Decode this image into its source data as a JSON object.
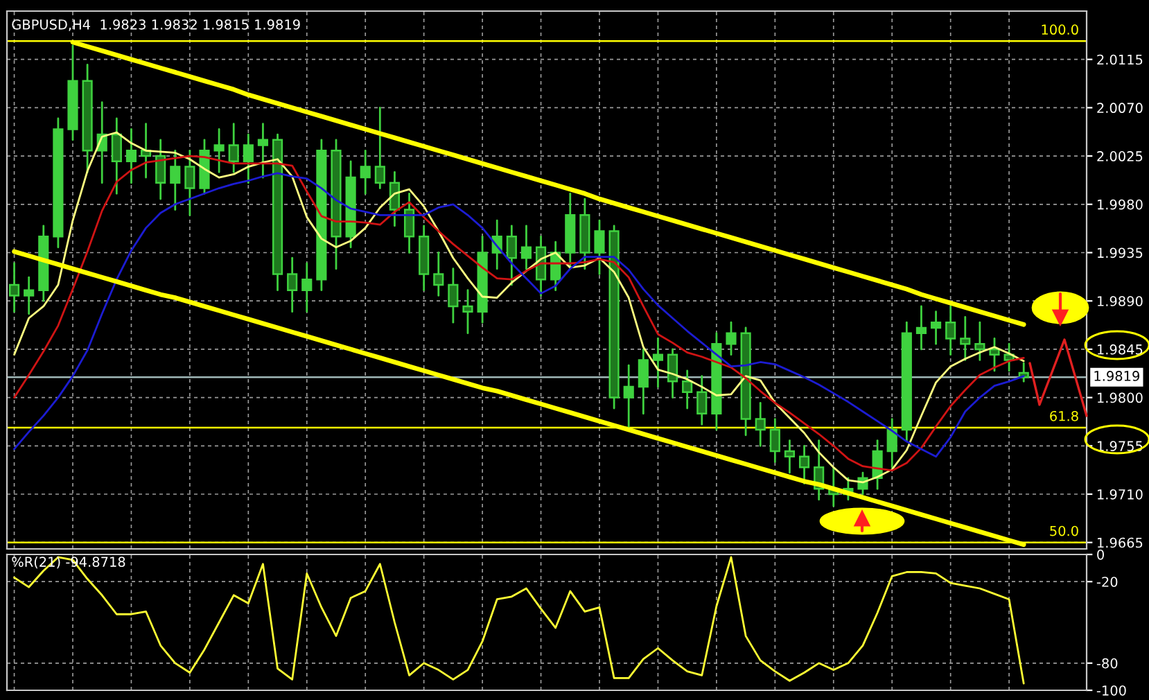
{
  "chart_data": [
    {
      "type": "candlestick",
      "title": "GBPUSD,H4  1.9823 1.9832 1.9815 1.9819",
      "color": "#3fd23f",
      "categories": [
        null,
        null,
        null,
        null,
        null,
        null,
        null,
        null,
        null,
        null,
        null,
        null,
        null,
        null,
        null,
        null,
        null,
        null,
        null,
        null,
        null,
        null,
        null,
        null,
        null,
        null,
        null,
        null,
        null,
        null,
        null,
        null,
        null,
        null,
        null,
        null,
        null,
        null,
        null,
        null,
        null,
        null,
        null,
        null,
        null,
        null,
        null,
        null,
        null,
        null,
        null,
        null,
        null,
        null,
        null,
        null,
        null,
        null,
        null,
        null,
        null,
        null,
        null,
        null,
        null,
        null,
        null,
        null,
        null,
        null
      ],
      "ohlc": [
        [
          1.9905,
          1.9925,
          1.988,
          1.9895
        ],
        [
          1.9895,
          1.9912,
          1.9878,
          1.99
        ],
        [
          1.99,
          1.996,
          1.989,
          1.995
        ],
        [
          1.995,
          2.006,
          1.994,
          2.005
        ],
        [
          2.005,
          2.0128,
          2.004,
          2.0095
        ],
        [
          2.0095,
          2.011,
          2.001,
          2.003
        ],
        [
          2.003,
          2.0075,
          2.0,
          2.0045
        ],
        [
          2.0045,
          2.006,
          1.999,
          2.002
        ],
        [
          2.002,
          2.005,
          2.0,
          2.003
        ],
        [
          2.003,
          2.0055,
          2.0005,
          2.0025
        ],
        [
          2.0025,
          2.004,
          1.9985,
          2.0
        ],
        [
          2.0,
          2.003,
          1.9975,
          2.0015
        ],
        [
          2.0015,
          2.003,
          1.997,
          1.9995
        ],
        [
          1.9995,
          2.004,
          1.999,
          2.003
        ],
        [
          2.003,
          2.005,
          2.001,
          2.0035
        ],
        [
          2.0035,
          2.0055,
          2.001,
          2.002
        ],
        [
          2.002,
          2.0045,
          2.0,
          2.0035
        ],
        [
          2.0035,
          2.0055,
          2.0005,
          2.004
        ],
        [
          2.004,
          2.0045,
          1.99,
          1.9915
        ],
        [
          1.9915,
          1.993,
          1.988,
          1.99
        ],
        [
          1.99,
          1.9925,
          1.988,
          1.991
        ],
        [
          1.991,
          2.004,
          1.99,
          2.003
        ],
        [
          2.003,
          2.004,
          1.992,
          1.995
        ],
        [
          1.995,
          2.002,
          1.994,
          2.0005
        ],
        [
          2.0005,
          2.003,
          1.999,
          2.0015
        ],
        [
          2.0015,
          2.007,
          1.9995,
          2.0
        ],
        [
          2.0,
          2.001,
          1.996,
          1.9975
        ],
        [
          1.9975,
          1.999,
          1.9935,
          1.995
        ],
        [
          1.995,
          1.996,
          1.99,
          1.9915
        ],
        [
          1.9915,
          1.9935,
          1.9895,
          1.9905
        ],
        [
          1.9905,
          1.992,
          1.987,
          1.9885
        ],
        [
          1.9885,
          1.99,
          1.986,
          1.988
        ],
        [
          1.988,
          1.995,
          1.987,
          1.9935
        ],
        [
          1.9935,
          1.9965,
          1.992,
          1.995
        ],
        [
          1.995,
          1.996,
          1.9905,
          1.993
        ],
        [
          1.993,
          1.996,
          1.992,
          1.994
        ],
        [
          1.994,
          1.995,
          1.9895,
          1.991
        ],
        [
          1.991,
          1.9945,
          1.99,
          1.9935
        ],
        [
          1.9935,
          1.999,
          1.992,
          1.997
        ],
        [
          1.997,
          1.9985,
          1.992,
          1.9935
        ],
        [
          1.9935,
          1.9965,
          1.9915,
          1.9955
        ],
        [
          1.9955,
          1.996,
          1.979,
          1.98
        ],
        [
          1.98,
          1.983,
          1.977,
          1.981
        ],
        [
          1.981,
          1.9845,
          1.9785,
          1.9835
        ],
        [
          1.9835,
          1.9855,
          1.981,
          1.984
        ],
        [
          1.984,
          1.9845,
          1.98,
          1.9815
        ],
        [
          1.9815,
          1.9825,
          1.979,
          1.9805
        ],
        [
          1.9805,
          1.982,
          1.9775,
          1.9785
        ],
        [
          1.9785,
          1.986,
          1.977,
          1.985
        ],
        [
          1.985,
          1.987,
          1.984,
          1.986
        ],
        [
          1.986,
          1.9865,
          1.9765,
          1.978
        ],
        [
          1.978,
          1.9795,
          1.9755,
          1.977
        ],
        [
          1.977,
          1.978,
          1.974,
          1.975
        ],
        [
          1.975,
          1.976,
          1.973,
          1.9745
        ],
        [
          1.9745,
          1.9755,
          1.972,
          1.9735
        ],
        [
          1.9735,
          1.976,
          1.9705,
          1.9715
        ],
        [
          1.9715,
          1.9735,
          1.9699,
          1.971
        ],
        [
          1.971,
          1.9725,
          1.9705,
          1.9715
        ],
        [
          1.9715,
          1.973,
          1.971,
          1.9725
        ],
        [
          1.9725,
          1.976,
          1.9715,
          1.975
        ],
        [
          1.975,
          1.978,
          1.9735,
          1.977
        ],
        [
          1.977,
          1.987,
          1.976,
          1.986
        ],
        [
          1.986,
          1.9885,
          1.9845,
          1.9865
        ],
        [
          1.9865,
          1.988,
          1.985,
          1.987
        ],
        [
          1.987,
          1.9885,
          1.984,
          1.9855
        ],
        [
          1.9855,
          1.9875,
          1.9835,
          1.985
        ],
        [
          1.985,
          1.987,
          1.9835,
          1.9845
        ],
        [
          1.9845,
          1.9855,
          1.9825,
          1.984
        ],
        [
          1.984,
          1.985,
          1.9825,
          1.9835
        ],
        [
          1.9823,
          1.9832,
          1.9815,
          1.9819
        ]
      ],
      "series": [
        {
          "type": "line",
          "color": "#ffff80",
          "values": [
            1.984,
            1.9874,
            1.9885,
            1.9905,
            1.9965,
            2.0011,
            2.0043,
            2.0047,
            2.0037,
            2.003,
            2.0029,
            2.0028,
            2.0022,
            2.0013,
            2.0005,
            2.0008,
            2.0015,
            2.0019,
            2.0022,
            2.0006,
            1.9968,
            1.9948,
            1.994,
            1.9946,
            1.9958,
            1.9977,
            1.999,
            1.9994,
            1.9978,
            1.9955,
            1.993,
            1.9911,
            1.9894,
            1.9893,
            1.9907,
            1.9918,
            1.9929,
            1.9935,
            1.9921,
            1.9923,
            1.993,
            1.9917,
            1.9893,
            1.9847,
            1.9826,
            1.9822,
            1.9817,
            1.981,
            1.9802,
            1.9803,
            1.982,
            1.9816,
            1.9795,
            1.9781,
            1.9767,
            1.9749,
            1.9735,
            1.9723,
            1.9721,
            1.9726,
            1.9733,
            1.9751,
            1.9783,
            1.9814,
            1.9829,
            1.9836,
            1.9842,
            1.9847,
            1.9841,
            1.9834
          ]
        },
        {
          "type": "line",
          "color": "#d01414",
          "values": [
            1.98,
            1.9821,
            1.9843,
            1.9867,
            1.9901,
            1.9936,
            1.9974,
            2.0001,
            2.0012,
            2.0019,
            2.0021,
            2.0023,
            2.0025,
            2.0024,
            2.0021,
            2.0018,
            2.0018,
            2.0018,
            2.0018,
            2.0016,
            1.9992,
            1.9969,
            1.9964,
            1.9964,
            1.9963,
            1.9961,
            1.9973,
            1.9982,
            1.9968,
            1.9955,
            1.9943,
            1.9932,
            1.9921,
            1.9911,
            1.991,
            1.9918,
            1.9925,
            1.9925,
            1.9925,
            1.9926,
            1.9929,
            1.9926,
            1.9912,
            1.9885,
            1.9859,
            1.9851,
            1.9842,
            1.9838,
            1.9833,
            1.9828,
            1.9818,
            1.9806,
            1.9795,
            1.9786,
            1.9776,
            1.9766,
            1.9755,
            1.9743,
            1.9736,
            1.9734,
            1.9732,
            1.9739,
            1.9753,
            1.9773,
            1.9792,
            1.9807,
            1.9821,
            1.9828,
            1.9834,
            1.9837
          ]
        },
        {
          "type": "line",
          "color": "#1c1cd2",
          "values": [
            1.9752,
            1.9768,
            1.9783,
            1.98,
            1.982,
            1.9844,
            1.9878,
            1.991,
            1.9937,
            1.9958,
            1.9972,
            1.998,
            1.9985,
            1.999,
            1.9995,
            1.9999,
            2.0002,
            2.0006,
            2.0009,
            2.0006,
            2.0004,
            1.9995,
            1.9984,
            1.9976,
            1.9973,
            1.997,
            1.997,
            1.997,
            1.997,
            1.9977,
            1.998,
            1.997,
            1.9958,
            1.9941,
            1.9925,
            1.9911,
            1.9897,
            1.9904,
            1.992,
            1.9931,
            1.9931,
            1.9931,
            1.9919,
            1.9901,
            1.9886,
            1.9874,
            1.9862,
            1.9851,
            1.984,
            1.9829,
            1.983,
            1.9833,
            1.9831,
            1.9825,
            1.9819,
            1.9812,
            1.9804,
            1.9796,
            1.9787,
            1.9778,
            1.9769,
            1.9759,
            1.9752,
            1.9745,
            1.9763,
            1.9787,
            1.98,
            1.9811,
            1.9815,
            1.982
          ]
        },
        {
          "type": "line",
          "color": "#ffff00",
          "values": [
            null,
            null,
            null,
            null,
            2.0131,
            2.0127,
            2.0123,
            2.0119,
            2.0115,
            2.0111,
            2.0107,
            2.0103,
            2.0099,
            2.0095,
            2.0091,
            2.0087,
            2.0082,
            2.0078,
            2.0074,
            2.007,
            2.0066,
            2.0062,
            2.0058,
            2.0054,
            2.005,
            2.0046,
            2.0042,
            2.0038,
            2.0034,
            2.003,
            2.0026,
            2.0022,
            2.0018,
            2.0014,
            2.001,
            2.0006,
            2.0002,
            1.9998,
            1.9994,
            1.999,
            1.9985,
            1.9981,
            1.9977,
            1.9973,
            1.9969,
            1.9965,
            1.9961,
            1.9957,
            1.9953,
            1.9949,
            1.9945,
            1.9941,
            1.9937,
            1.9933,
            1.9929,
            1.9925,
            1.9921,
            1.9917,
            1.9913,
            1.9909,
            1.9905,
            1.9901,
            1.9896,
            1.9892,
            1.9888,
            1.9884,
            1.988,
            1.9876,
            1.9872,
            1.9868
          ]
        },
        {
          "type": "line",
          "color": "#ffff00",
          "values": [
            1.9936,
            1.9932,
            1.9928,
            1.9924,
            1.992,
            1.9916,
            1.9912,
            1.9908,
            1.9904,
            1.99,
            1.9896,
            1.9893,
            1.9889,
            1.9885,
            1.9881,
            1.9877,
            1.9873,
            1.9869,
            1.9865,
            1.9861,
            1.9857,
            1.9853,
            1.9849,
            1.9845,
            1.9841,
            1.9837,
            1.9833,
            1.9829,
            1.9825,
            1.9821,
            1.9817,
            1.9813,
            1.9809,
            1.9806,
            1.9802,
            1.9798,
            1.9794,
            1.979,
            1.9786,
            1.9782,
            1.9778,
            1.9774,
            1.977,
            1.9766,
            1.9762,
            1.9758,
            1.9754,
            1.975,
            1.9746,
            1.9742,
            1.9738,
            1.9734,
            1.973,
            1.9726,
            1.9722,
            1.9719,
            1.9715,
            1.9711,
            1.9707,
            1.9703,
            1.9699,
            1.9695,
            1.9691,
            1.9687,
            1.9683,
            1.9679,
            1.9675,
            1.9671,
            1.9667,
            1.9663
          ]
        }
      ],
      "ylim": [
        1.9659,
        2.016
      ],
      "yticks": [
        2.0115,
        {
          "value": 2.007,
          "label": "2.0070"
        },
        2.0025,
        {
          "value": 1.998,
          "label": "1.9980"
        },
        1.9935,
        {
          "value": 1.989,
          "label": "1.9890"
        },
        1.9845,
        {
          "value": 1.98,
          "label": "1.9800"
        },
        1.9755,
        {
          "value": 1.971,
          "label": "1.9710"
        },
        1.9665
      ],
      "ref_lines": [
        {
          "axis": "y",
          "value": 2.0132,
          "color": "#ffff00"
        },
        {
          "axis": "y",
          "value": 1.9772,
          "color": "#ffff00"
        },
        {
          "axis": "y",
          "value": 1.9665,
          "color": "#ffff00"
        },
        {
          "axis": "y",
          "value": 1.9819,
          "label": "1.9819",
          "color": "#a0b8b8"
        }
      ],
      "annotations": [
        {
          "text": "100.0",
          "y": 2.0132
        },
        {
          "text": "61.8",
          "y": 1.9772
        },
        {
          "text": "50.0",
          "y": 1.9665
        }
      ],
      "grid": true,
      "tick_labels": "y"
    },
    {
      "type": "line",
      "title": "%R(21) -94.8718",
      "categories": [
        null,
        null,
        null,
        null,
        null,
        null,
        null,
        null,
        null,
        null,
        null,
        null,
        null,
        null,
        null,
        null,
        null,
        null,
        null,
        null,
        null,
        null,
        null,
        null,
        null,
        null,
        null,
        null,
        null,
        null,
        null,
        null,
        null,
        null,
        null,
        null,
        null,
        null,
        null,
        null,
        null,
        null,
        null,
        null,
        null,
        null,
        null,
        null,
        null,
        null,
        null,
        null,
        null,
        null,
        null,
        null,
        null,
        null,
        null,
        null,
        null,
        null,
        null,
        null,
        null,
        null,
        null,
        null,
        null,
        null
      ],
      "series": [
        {
          "color": "#ffff33",
          "values": [
            -17,
            -24,
            -12,
            -2,
            -4,
            -18,
            -30,
            -44,
            -44,
            -42,
            -67,
            -80,
            -87,
            -70,
            -50,
            -30,
            -36,
            -7,
            -84,
            -92,
            -14,
            -39,
            -60,
            -32,
            -27,
            -7,
            -50,
            -89,
            -80,
            -85,
            -92,
            -85,
            -64,
            -33,
            -31,
            -25,
            -40,
            -54,
            -27,
            -42,
            -39,
            -91,
            -91,
            -77,
            -69,
            -78,
            -86,
            -89,
            -38,
            -2,
            -60,
            -78,
            -86,
            -93,
            -87,
            -80,
            -85,
            -80,
            -67,
            -43,
            -16,
            -13,
            -13,
            -14,
            -21,
            -23,
            -25,
            -29,
            -33,
            -95
          ]
        }
      ],
      "ylim": [
        -100,
        0
      ],
      "yticks": [
        0,
        -20,
        -80,
        -100
      ],
      "grid": true,
      "tick_labels": "y"
    }
  ]
}
